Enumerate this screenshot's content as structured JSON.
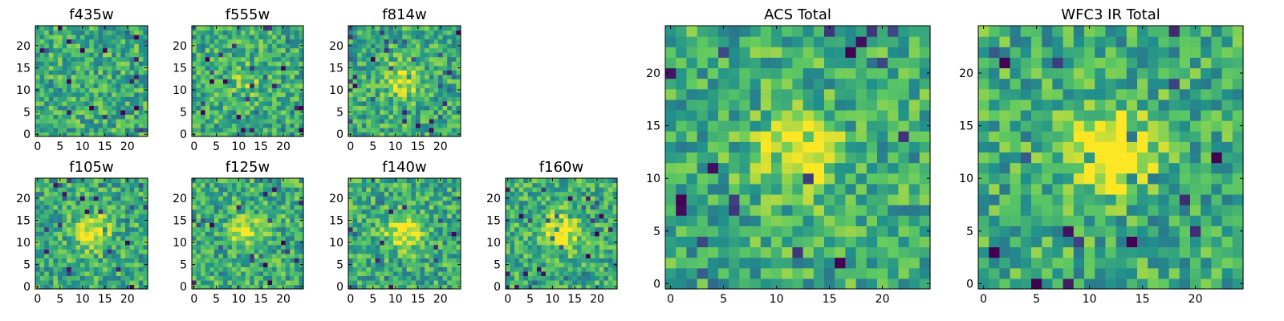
{
  "chart_data": [
    {
      "type": "heatmap",
      "title": "f435w",
      "xticks": [
        0,
        5,
        10,
        15,
        20
      ],
      "yticks": [
        0,
        5,
        10,
        15,
        20
      ],
      "xlim": [
        0,
        24
      ],
      "ylim": [
        0,
        24
      ],
      "grid": false,
      "colormap": "viridis",
      "center_brightness": 0.0
    },
    {
      "type": "heatmap",
      "title": "f555w",
      "xticks": [
        0,
        5,
        10,
        15,
        20
      ],
      "yticks": [
        0,
        5,
        10,
        15,
        20
      ],
      "xlim": [
        0,
        24
      ],
      "ylim": [
        0,
        24
      ],
      "grid": false,
      "colormap": "viridis",
      "center_brightness": 0.15
    },
    {
      "type": "heatmap",
      "title": "f814w",
      "xticks": [
        0,
        5,
        10,
        15,
        20
      ],
      "yticks": [
        0,
        5,
        10,
        15,
        20
      ],
      "xlim": [
        0,
        24
      ],
      "ylim": [
        0,
        24
      ],
      "grid": false,
      "colormap": "viridis",
      "center_brightness": 0.35
    },
    {
      "type": "heatmap",
      "title": "f105w",
      "xticks": [
        0,
        5,
        10,
        15,
        20
      ],
      "yticks": [
        0,
        5,
        10,
        15,
        20
      ],
      "xlim": [
        0,
        24
      ],
      "ylim": [
        0,
        24
      ],
      "grid": false,
      "colormap": "viridis",
      "center_brightness": 0.45
    },
    {
      "type": "heatmap",
      "title": "f125w",
      "xticks": [
        0,
        5,
        10,
        15,
        20
      ],
      "yticks": [
        0,
        5,
        10,
        15,
        20
      ],
      "xlim": [
        0,
        24
      ],
      "ylim": [
        0,
        24
      ],
      "grid": false,
      "colormap": "viridis",
      "center_brightness": 0.3
    },
    {
      "type": "heatmap",
      "title": "f140w",
      "xticks": [
        0,
        5,
        10,
        15,
        20
      ],
      "yticks": [
        0,
        5,
        10,
        15,
        20
      ],
      "xlim": [
        0,
        24
      ],
      "ylim": [
        0,
        24
      ],
      "grid": false,
      "colormap": "viridis",
      "center_brightness": 0.45
    },
    {
      "type": "heatmap",
      "title": "f160w",
      "xticks": [
        0,
        5,
        10,
        15,
        20
      ],
      "yticks": [
        0,
        5,
        10,
        15,
        20
      ],
      "xlim": [
        0,
        24
      ],
      "ylim": [
        0,
        24
      ],
      "grid": false,
      "colormap": "viridis",
      "center_brightness": 0.45
    },
    {
      "type": "heatmap",
      "title": "ACS Total",
      "xticks": [
        0,
        5,
        10,
        15,
        20
      ],
      "yticks": [
        0,
        5,
        10,
        15,
        20
      ],
      "xlim": [
        0,
        24
      ],
      "ylim": [
        0,
        24
      ],
      "grid": false,
      "colormap": "viridis",
      "center_brightness": 0.4
    },
    {
      "type": "heatmap",
      "title": "WFC3 IR Total",
      "xticks": [
        0,
        5,
        10,
        15,
        20
      ],
      "yticks": [
        0,
        5,
        10,
        15,
        20
      ],
      "xlim": [
        0,
        24
      ],
      "ylim": [
        0,
        24
      ],
      "grid": false,
      "colormap": "viridis",
      "center_brightness": 0.6
    }
  ]
}
